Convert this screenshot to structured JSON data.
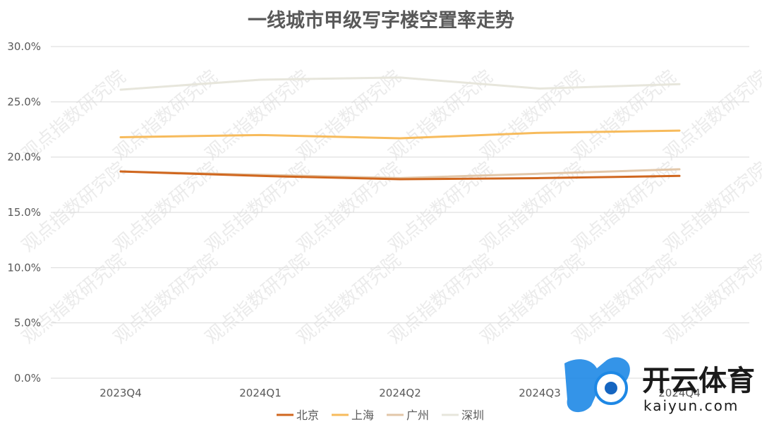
{
  "chart_data": {
    "type": "line",
    "title": "一线城市甲级写字楼空置率走势",
    "categories": [
      "2023Q4",
      "2024Q1",
      "2024Q2",
      "2024Q3",
      "2024Q4"
    ],
    "y_tick_labels": [
      "0.0%",
      "5.0%",
      "10.0%",
      "15.0%",
      "20.0%",
      "25.0%",
      "30.0%"
    ],
    "ylim": [
      0,
      30
    ],
    "grid": true,
    "legend_position": "bottom",
    "series": [
      {
        "name": "北京",
        "color": "#d0671f",
        "values": [
          18.7,
          18.3,
          18.0,
          18.1,
          18.3
        ]
      },
      {
        "name": "上海",
        "color": "#f7bb5c",
        "values": [
          21.8,
          22.0,
          21.7,
          22.2,
          22.4
        ]
      },
      {
        "name": "广州",
        "color": "#e2c7a9",
        "values": [
          18.7,
          18.4,
          18.1,
          18.5,
          18.9
        ]
      },
      {
        "name": "深圳",
        "color": "#e7e6dc",
        "values": [
          26.1,
          27.0,
          27.2,
          26.2,
          26.6
        ]
      }
    ]
  },
  "watermark": {
    "text": "观点指数研究院"
  },
  "logo": {
    "cn": "开云体育",
    "en": "kaiyun.com"
  }
}
